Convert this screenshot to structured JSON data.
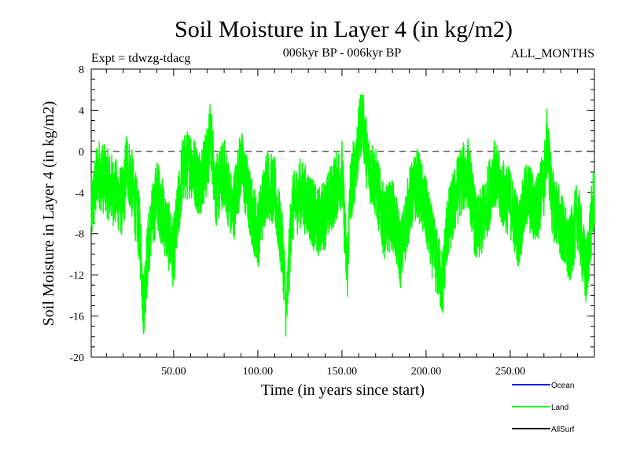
{
  "chart_data": {
    "type": "line",
    "title": "Soil Moisture in Layer 4 (in kg/m2)",
    "subtitle_left": "Expt = tdwzg-tdacg",
    "subtitle_center": "006kyr BP - 006kyr BP",
    "subtitle_right": "ALL_MONTHS",
    "xlabel": "Time (in years since start)",
    "ylabel": "Soil Moisture in Layer 4 (in kg/m2)",
    "xlim": [
      1,
      300
    ],
    "ylim": [
      -20,
      8
    ],
    "x_ticks": [
      50,
      100,
      150,
      200,
      250
    ],
    "x_tick_labels": [
      "50.00",
      "100.00",
      "150.00",
      "200.00",
      "250.00"
    ],
    "y_ticks": [
      8,
      4,
      0,
      -4,
      -8,
      -12,
      -16,
      -20
    ],
    "y_tick_labels": [
      "8",
      "4",
      "0",
      "-4",
      "-8",
      "-12",
      "-16",
      "-20"
    ],
    "reference_line": 0,
    "colors": {
      "Ocean": "#0000ff",
      "Land": "#00ff00",
      "AllSurf": "#000000"
    },
    "legend": [
      "Ocean",
      "Land",
      "AllSurf"
    ],
    "legend_placement": "bottom-right",
    "series": [
      {
        "name": "Land",
        "x": [
          1,
          5,
          10,
          15,
          20,
          22,
          25,
          30,
          32,
          35,
          40,
          45,
          50,
          55,
          60,
          65,
          70,
          72,
          75,
          80,
          85,
          90,
          95,
          100,
          105,
          110,
          115,
          117,
          120,
          125,
          130,
          135,
          140,
          145,
          150,
          153,
          155,
          160,
          162,
          165,
          170,
          175,
          180,
          185,
          190,
          195,
          200,
          205,
          210,
          212,
          215,
          220,
          225,
          230,
          235,
          240,
          245,
          250,
          255,
          260,
          265,
          270,
          272,
          275,
          280,
          285,
          290,
          295,
          300
        ],
        "values": [
          -6,
          -2,
          -3,
          -4,
          -5,
          -1,
          -3,
          -8,
          -15,
          -9,
          -4,
          -7,
          -10,
          -2,
          -1,
          -3,
          -1,
          2,
          -4,
          -2,
          -6,
          -1,
          -5,
          -8,
          -3,
          -4,
          -10,
          -16,
          -6,
          -4,
          -5,
          -7,
          -6,
          -4,
          -2,
          -12,
          -4,
          1,
          4,
          -1,
          -3,
          -7,
          -6,
          -10,
          -5,
          -3,
          -6,
          -10,
          -13,
          -8,
          -6,
          -3,
          -2,
          -8,
          -6,
          -2,
          -4,
          -5,
          -8,
          -4,
          -6,
          -3,
          1,
          -5,
          -7,
          -10,
          -6,
          -12,
          -4
        ]
      }
    ]
  }
}
